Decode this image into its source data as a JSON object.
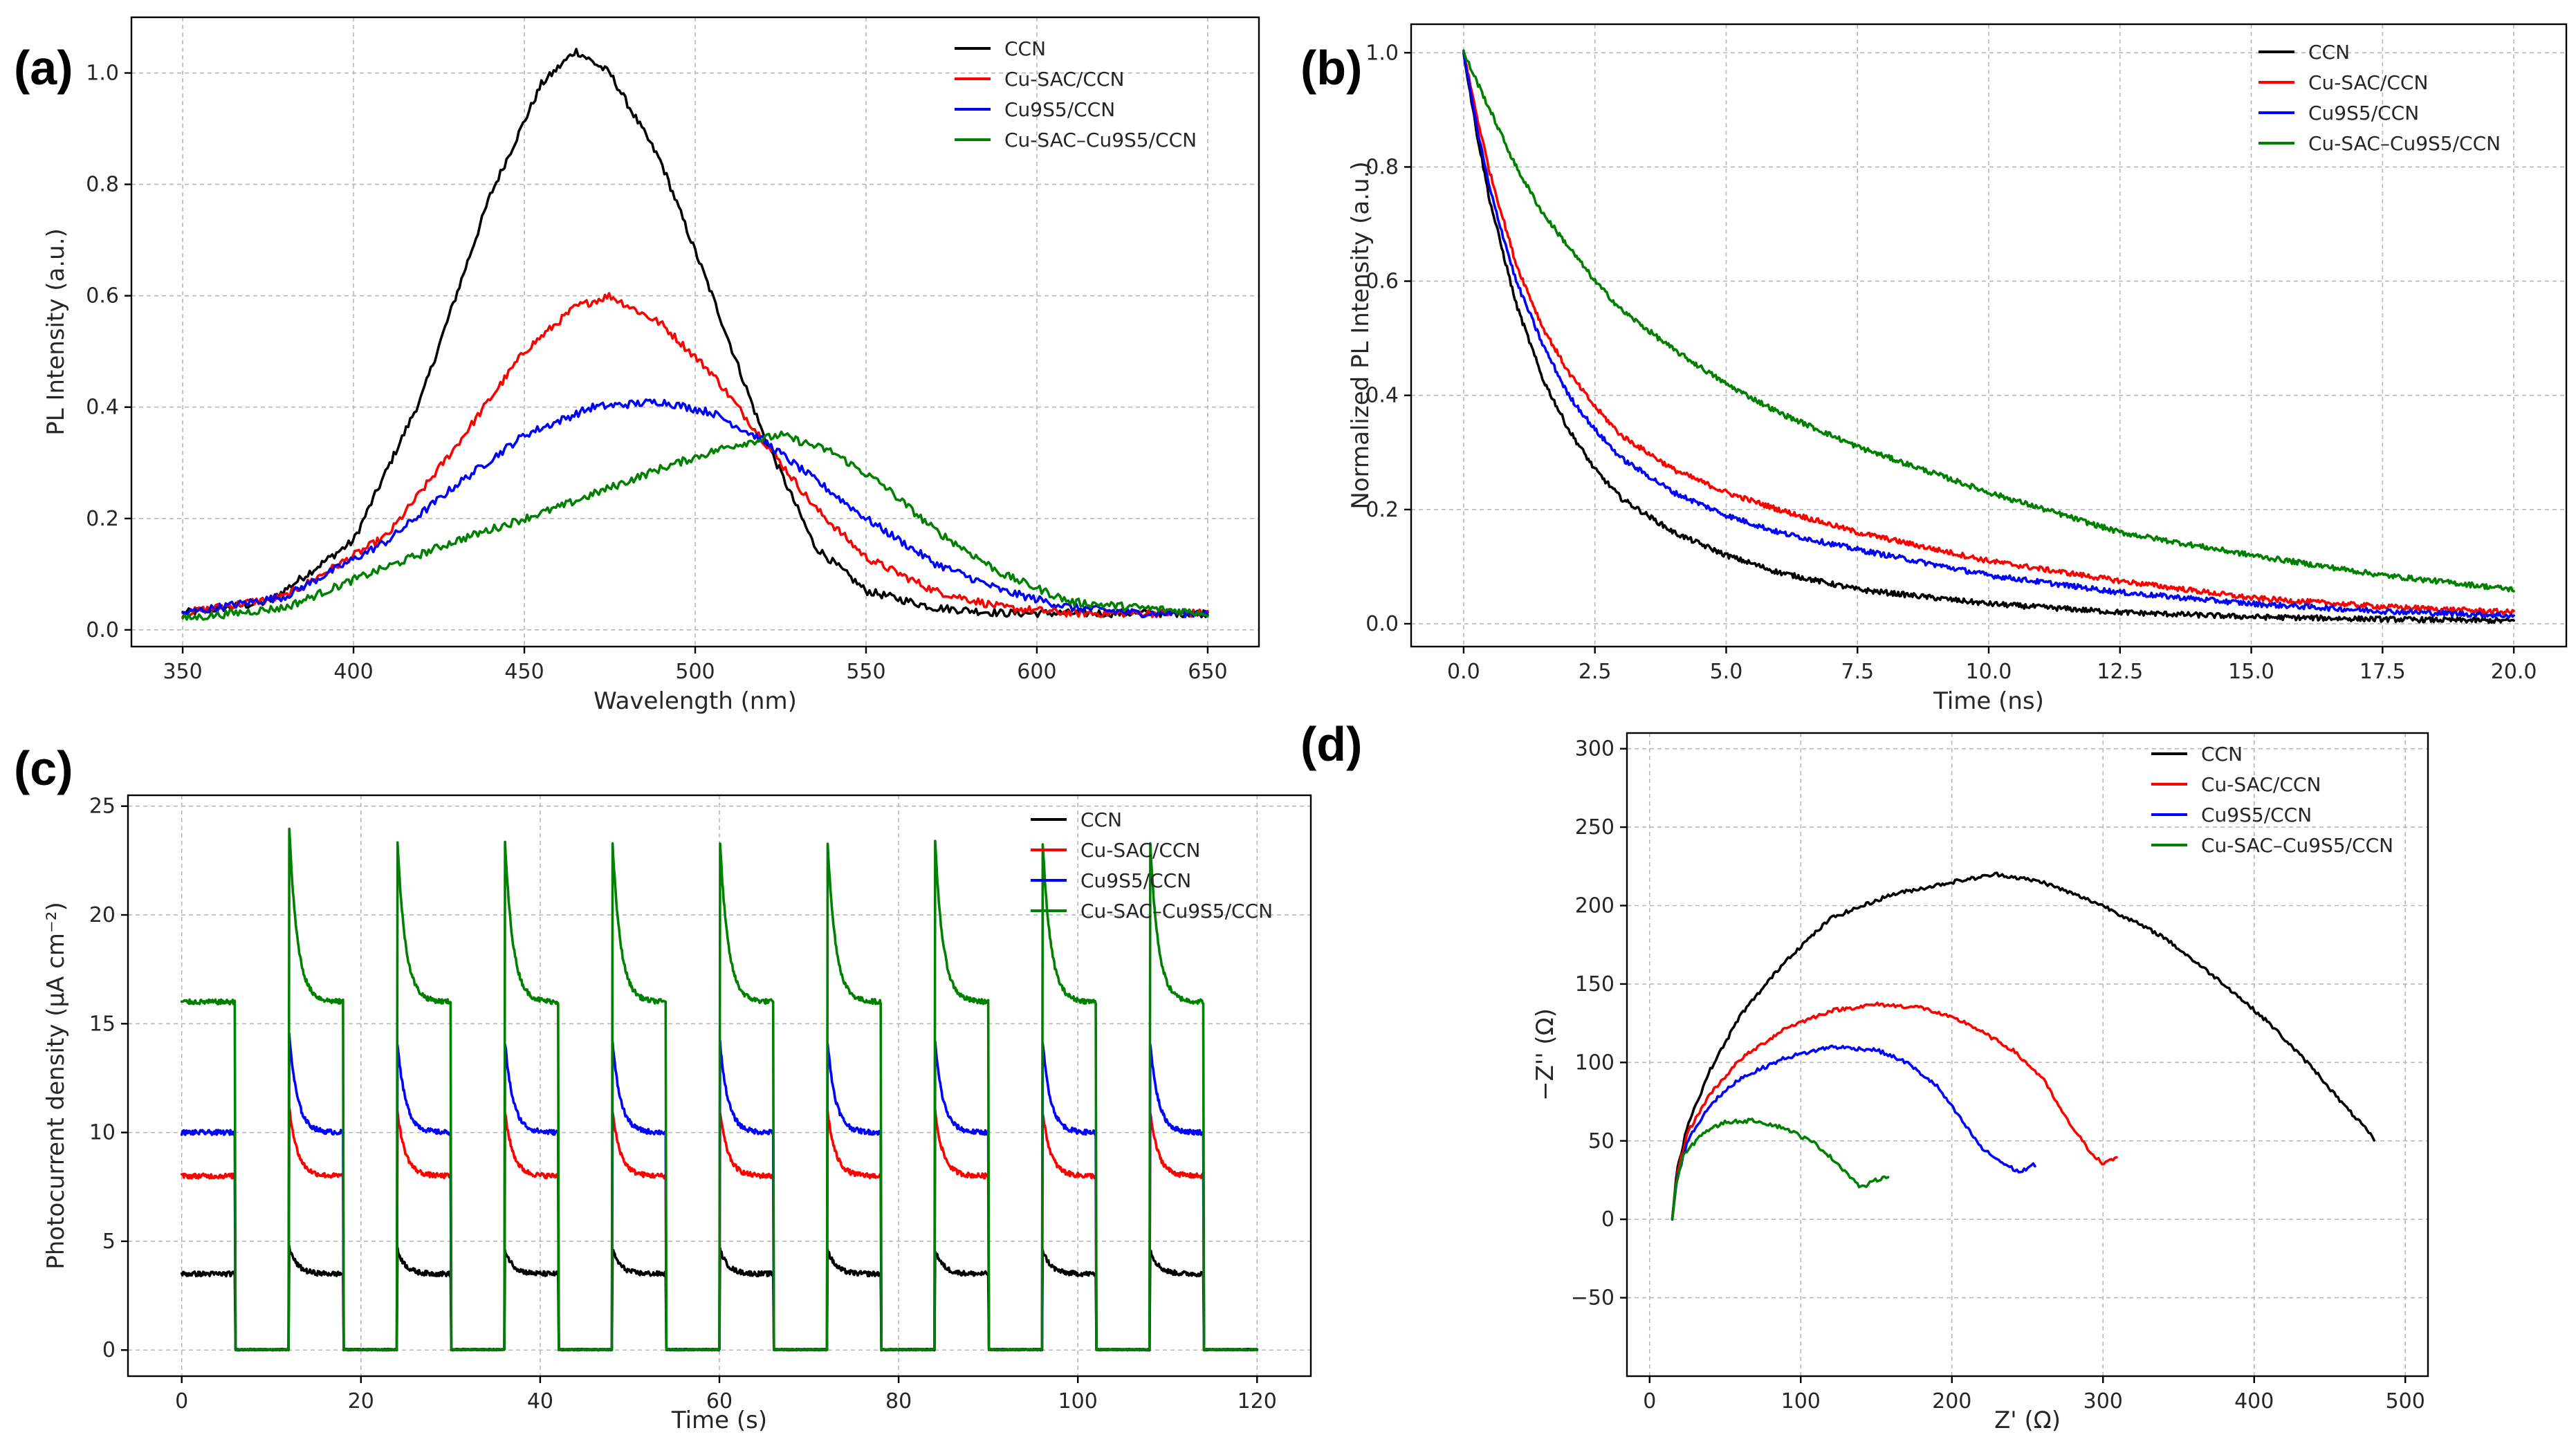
{
  "colors": {
    "CCN": "#000000",
    "Cu-SAC/CCN": "#ff0000",
    "Cu9S5/CCN": "#0000ff",
    "Cu-SAC–Cu9S5/CCN": "#008000"
  },
  "chart_data": [
    {
      "panel": "(a)",
      "type": "line",
      "xlabel": "Wavelength (nm)",
      "ylabel": "PL Intensity (a.u.)",
      "xlim": [
        335,
        665
      ],
      "ylim": [
        -0.03,
        1.1
      ],
      "xticks": [
        350,
        400,
        450,
        500,
        550,
        600,
        650
      ],
      "xtick_labels": [
        "350",
        "400",
        "450",
        "500",
        "550",
        "600",
        "650"
      ],
      "yticks": [
        0.0,
        0.2,
        0.4,
        0.6,
        0.8,
        1.0
      ],
      "ytick_labels": [
        "0.0",
        "0.2",
        "0.4",
        "0.6",
        "0.8",
        "1.0"
      ],
      "legend": "top-right",
      "series": [
        {
          "name": "CCN",
          "x": [
            350,
            375,
            400,
            420,
            440,
            455,
            465,
            475,
            490,
            505,
            520,
            535,
            550,
            570,
            590,
            610,
            630,
            650
          ],
          "y": [
            0.03,
            0.05,
            0.16,
            0.42,
            0.78,
            0.98,
            1.04,
            1.0,
            0.84,
            0.6,
            0.35,
            0.15,
            0.07,
            0.04,
            0.03,
            0.03,
            0.03,
            0.03
          ]
        },
        {
          "name": "Cu-SAC/CCN",
          "x": [
            350,
            380,
            410,
            430,
            450,
            465,
            475,
            490,
            505,
            520,
            535,
            550,
            570,
            590,
            610,
            630,
            650
          ],
          "y": [
            0.03,
            0.06,
            0.17,
            0.33,
            0.5,
            0.58,
            0.6,
            0.55,
            0.46,
            0.34,
            0.22,
            0.13,
            0.07,
            0.04,
            0.03,
            0.03,
            0.03
          ]
        },
        {
          "name": "Cu9S5/CCN",
          "x": [
            350,
            380,
            410,
            430,
            450,
            470,
            490,
            505,
            520,
            535,
            550,
            570,
            590,
            610,
            630,
            650
          ],
          "y": [
            0.03,
            0.06,
            0.16,
            0.26,
            0.35,
            0.4,
            0.41,
            0.39,
            0.34,
            0.27,
            0.2,
            0.12,
            0.07,
            0.04,
            0.03,
            0.03
          ]
        },
        {
          "name": "Cu-SAC–Cu9S5/CCN",
          "x": [
            350,
            380,
            400,
            430,
            460,
            490,
            510,
            525,
            540,
            555,
            570,
            590,
            610,
            630,
            650
          ],
          "y": [
            0.02,
            0.04,
            0.09,
            0.16,
            0.22,
            0.29,
            0.33,
            0.35,
            0.32,
            0.26,
            0.18,
            0.1,
            0.05,
            0.04,
            0.03
          ]
        }
      ]
    },
    {
      "panel": "(b)",
      "type": "line",
      "xlabel": "Time (ns)",
      "ylabel": "Normalized PL Intensity (a.u.)",
      "xlim": [
        -1.0,
        21.0
      ],
      "ylim": [
        -0.04,
        1.05
      ],
      "xticks": [
        0,
        2.5,
        5,
        7.5,
        10,
        12.5,
        15,
        17.5,
        20
      ],
      "xtick_labels": [
        "0.0",
        "2.5",
        "5.0",
        "7.5",
        "10.0",
        "12.5",
        "15.0",
        "17.5",
        "20.0"
      ],
      "yticks": [
        0,
        0.2,
        0.4,
        0.6,
        0.8,
        1.0
      ],
      "ytick_labels": [
        "0.0",
        "0.2",
        "0.4",
        "0.6",
        "0.8",
        "1.0"
      ],
      "legend": "top-right",
      "series": [
        {
          "name": "CCN",
          "x": [
            0,
            0.25,
            0.5,
            1,
            1.5,
            2,
            2.5,
            3,
            4,
            5,
            6,
            7.5,
            10,
            12.5,
            15,
            17.5,
            20
          ],
          "y": [
            1.0,
            0.86,
            0.74,
            0.56,
            0.43,
            0.34,
            0.27,
            0.22,
            0.16,
            0.12,
            0.09,
            0.06,
            0.035,
            0.02,
            0.012,
            0.008,
            0.005
          ]
        },
        {
          "name": "Cu-SAC/CCN",
          "x": [
            0,
            0.25,
            0.5,
            1,
            1.5,
            2,
            2.5,
            3,
            4,
            5,
            6,
            7.5,
            10,
            12.5,
            15,
            17.5,
            20
          ],
          "y": [
            1.0,
            0.89,
            0.79,
            0.63,
            0.52,
            0.44,
            0.38,
            0.33,
            0.27,
            0.23,
            0.2,
            0.16,
            0.11,
            0.075,
            0.045,
            0.03,
            0.02
          ]
        },
        {
          "name": "Cu9S5/CCN",
          "x": [
            0,
            0.25,
            0.5,
            1,
            1.5,
            2,
            2.5,
            3,
            4,
            5,
            6,
            7.5,
            10,
            12.5,
            15,
            17.5,
            20
          ],
          "y": [
            1.0,
            0.87,
            0.76,
            0.6,
            0.49,
            0.4,
            0.34,
            0.29,
            0.23,
            0.19,
            0.16,
            0.13,
            0.085,
            0.055,
            0.035,
            0.022,
            0.014
          ]
        },
        {
          "name": "Cu-SAC–Cu9S5/CCN",
          "x": [
            0,
            0.25,
            0.5,
            1,
            1.5,
            2,
            2.5,
            3,
            4,
            5,
            6,
            7.5,
            10,
            12.5,
            15,
            17.5,
            20
          ],
          "y": [
            1.0,
            0.95,
            0.9,
            0.8,
            0.72,
            0.66,
            0.6,
            0.55,
            0.48,
            0.42,
            0.37,
            0.31,
            0.23,
            0.16,
            0.12,
            0.085,
            0.06
          ]
        }
      ]
    },
    {
      "panel": "(c)",
      "type": "line",
      "xlabel": "Time (s)",
      "ylabel": "Photocurrent density (μA cm⁻²)",
      "xlim": [
        -6,
        126
      ],
      "ylim": [
        -1.2,
        25.5
      ],
      "xticks": [
        0,
        20,
        40,
        60,
        80,
        100,
        120
      ],
      "xtick_labels": [
        "0",
        "20",
        "40",
        "60",
        "80",
        "100",
        "120"
      ],
      "yticks": [
        0,
        5,
        10,
        15,
        20,
        25
      ],
      "ytick_labels": [
        "0",
        "5",
        "10",
        "15",
        "20",
        "25"
      ],
      "legend": "top-right",
      "on_off_period_s": 12,
      "light_on_intervals_s": [
        [
          0,
          6
        ],
        [
          12,
          18
        ],
        [
          24,
          30
        ],
        [
          36,
          42
        ],
        [
          48,
          54
        ],
        [
          60,
          66
        ],
        [
          72,
          78
        ],
        [
          84,
          90
        ],
        [
          96,
          102
        ],
        [
          108,
          114
        ]
      ],
      "series": [
        {
          "name": "CCN",
          "steady": 3.5,
          "spike": 4.7
        },
        {
          "name": "Cu-SAC/CCN",
          "steady": 8.0,
          "spike": 11.2
        },
        {
          "name": "Cu9S5/CCN",
          "steady": 10.0,
          "spike": 14.5
        },
        {
          "name": "Cu-SAC–Cu9S5/CCN",
          "steady": 16.0,
          "spike": 24.0
        }
      ]
    },
    {
      "panel": "(d)",
      "type": "line",
      "xlabel": "Z' (Ω)",
      "ylabel": "−Z'' (Ω)",
      "xlim": [
        -15,
        515
      ],
      "ylim": [
        -100,
        310
      ],
      "xticks": [
        0,
        100,
        200,
        300,
        400,
        500
      ],
      "xtick_labels": [
        "0",
        "100",
        "200",
        "300",
        "400",
        "500"
      ],
      "yticks": [
        -50,
        0,
        50,
        100,
        150,
        200,
        250,
        300
      ],
      "ytick_labels": [
        "−50",
        "0",
        "50",
        "100",
        "150",
        "200",
        "250",
        "300"
      ],
      "legend": "top-center",
      "series": [
        {
          "name": "CCN",
          "x": [
            15,
            18,
            25,
            40,
            60,
            90,
            120,
            160,
            200,
            230,
            260,
            300,
            340,
            380,
            410,
            440,
            460,
            470,
            480
          ],
          "y": [
            0,
            30,
            60,
            95,
            130,
            165,
            192,
            207,
            215,
            220,
            215,
            200,
            180,
            150,
            125,
            95,
            72,
            62,
            50
          ]
        },
        {
          "name": "Cu-SAC/CCN",
          "x": [
            15,
            18,
            25,
            40,
            60,
            90,
            120,
            150,
            180,
            210,
            240,
            260,
            275,
            290,
            300,
            310
          ],
          "y": [
            0,
            28,
            55,
            80,
            102,
            122,
            133,
            137,
            135,
            125,
            108,
            90,
            65,
            45,
            35,
            40
          ]
        },
        {
          "name": "Cu9S5/CCN",
          "x": [
            15,
            18,
            25,
            40,
            60,
            90,
            120,
            150,
            170,
            190,
            205,
            220,
            235,
            245,
            255
          ],
          "y": [
            0,
            25,
            50,
            73,
            90,
            103,
            110,
            108,
            100,
            85,
            65,
            45,
            35,
            30,
            35
          ]
        },
        {
          "name": "Cu-SAC–Cu9S5/CCN",
          "x": [
            15,
            17,
            22,
            35,
            50,
            70,
            90,
            110,
            125,
            140,
            150,
            158
          ],
          "y": [
            0,
            20,
            40,
            55,
            62,
            63,
            58,
            48,
            35,
            20,
            25,
            28
          ]
        }
      ]
    }
  ]
}
